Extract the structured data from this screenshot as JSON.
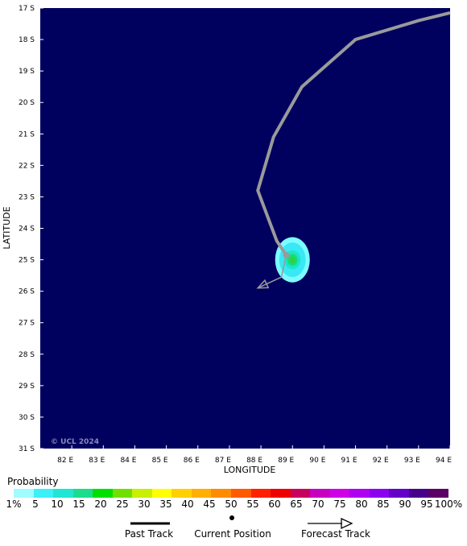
{
  "map": {
    "lon_min": 81,
    "lon_max": 94,
    "lat_min": -31,
    "lat_max": -17,
    "background_color": "#00005f",
    "x_axis_title": "LONGITUDE",
    "y_axis_title": "LATITUDE",
    "x_ticks": [
      "82 E",
      "83 E",
      "84 E",
      "85 E",
      "86 E",
      "87 E",
      "88 E",
      "89 E",
      "90 E",
      "91 E",
      "92 E",
      "93 E",
      "94 E"
    ],
    "y_ticks": [
      "17 S",
      "18 S",
      "19 S",
      "20 S",
      "21 S",
      "22 S",
      "23 S",
      "24 S",
      "25 S",
      "26 S",
      "27 S",
      "28 S",
      "29 S",
      "30 S",
      "31 S"
    ],
    "copyright": "© UCL 2024"
  },
  "track": {
    "color": "#9a9a9a",
    "past_track_points": [
      [
        94.0,
        -17.15
      ],
      [
        93.0,
        -17.4
      ],
      [
        91.0,
        -18.0
      ],
      [
        89.3,
        -19.5
      ],
      [
        88.4,
        -21.1
      ],
      [
        87.9,
        -22.8
      ],
      [
        88.5,
        -24.4
      ],
      [
        88.8,
        -24.85
      ]
    ],
    "current_position": [
      88.8,
      -24.85
    ],
    "forecast_track_points": [
      [
        88.8,
        -24.85
      ],
      [
        88.65,
        -25.55
      ],
      [
        87.9,
        -25.9
      ]
    ]
  },
  "probability_blob": {
    "center": [
      89.0,
      -25.0
    ],
    "levels": [
      {
        "probability": "1%",
        "color": "#7dfcff",
        "rx": 0.55,
        "ry": 0.72
      },
      {
        "probability": "5",
        "color": "#39e8f5",
        "rx": 0.42,
        "ry": 0.55
      },
      {
        "probability": "10",
        "color": "#1ce6c8",
        "rx": 0.26,
        "ry": 0.3
      },
      {
        "probability": "15",
        "color": "#19d98a",
        "rx": 0.17,
        "ry": 0.19
      },
      {
        "probability": "20",
        "color": "#2bd63a",
        "rx": 0.1,
        "ry": 0.11
      }
    ]
  },
  "probability_scale": {
    "title": "Probability",
    "labels": [
      "1%",
      "5",
      "10",
      "15",
      "20",
      "25",
      "30",
      "35",
      "40",
      "45",
      "50",
      "55",
      "60",
      "65",
      "70",
      "75",
      "80",
      "85",
      "90",
      "95",
      "100%"
    ],
    "colors": [
      "#9ffcff",
      "#3cf0f8",
      "#20e6d4",
      "#1cdc8e",
      "#00e000",
      "#70e000",
      "#c8f000",
      "#ffff00",
      "#ffd000",
      "#ffb000",
      "#ff8c00",
      "#ff5a00",
      "#ff2000",
      "#ee0000",
      "#c80060",
      "#c800c0",
      "#d000e6",
      "#b000f0",
      "#8c00f0",
      "#6400c8",
      "#46008c",
      "#5a0064"
    ]
  },
  "legend": {
    "past_track": "Past Track",
    "current_position": "Current Position",
    "forecast_track": "Forecast Track"
  }
}
